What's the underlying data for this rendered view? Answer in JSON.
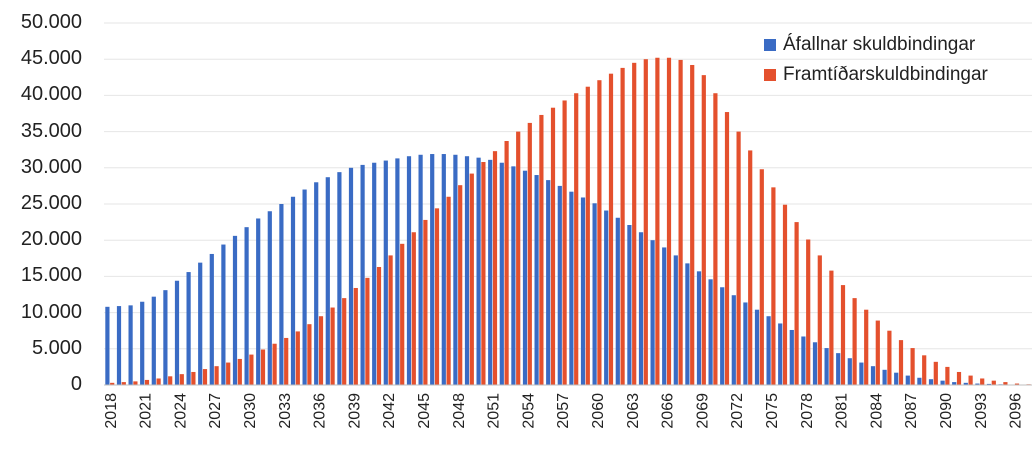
{
  "chart_data": {
    "type": "bar",
    "title": "",
    "xlabel": "",
    "ylabel": "",
    "ylim": [
      0,
      50000
    ],
    "y_ticks": [
      "50.000",
      "45.000",
      "40.000",
      "35.000",
      "30.000",
      "25.000",
      "20.000",
      "15.000",
      "10.000",
      "5.000",
      "0"
    ],
    "x_tick_labels": [
      "2018",
      "2021",
      "2024",
      "2027",
      "2030",
      "2033",
      "2036",
      "2039",
      "2042",
      "2045",
      "2048",
      "2051",
      "2054",
      "2057",
      "2060",
      "2063",
      "2066",
      "2069",
      "2072",
      "2075",
      "2078",
      "2081",
      "2084",
      "2087",
      "2090",
      "2093",
      "2096"
    ],
    "grid": true,
    "legend_position": "top-right",
    "categories": [
      2018,
      2019,
      2020,
      2021,
      2022,
      2023,
      2024,
      2025,
      2026,
      2027,
      2028,
      2029,
      2030,
      2031,
      2032,
      2033,
      2034,
      2035,
      2036,
      2037,
      2038,
      2039,
      2040,
      2041,
      2042,
      2043,
      2044,
      2045,
      2046,
      2047,
      2048,
      2049,
      2050,
      2051,
      2052,
      2053,
      2054,
      2055,
      2056,
      2057,
      2058,
      2059,
      2060,
      2061,
      2062,
      2063,
      2064,
      2065,
      2066,
      2067,
      2068,
      2069,
      2070,
      2071,
      2072,
      2073,
      2074,
      2075,
      2076,
      2077,
      2078,
      2079,
      2080,
      2081,
      2082,
      2083,
      2084,
      2085,
      2086,
      2087,
      2088,
      2089,
      2090,
      2091,
      2092,
      2093,
      2094,
      2095,
      2096,
      2097
    ],
    "series": [
      {
        "name": "Áfallnar skuldbindingar",
        "color": "#3a6bc4",
        "values": [
          10800,
          10900,
          11000,
          11500,
          12200,
          13100,
          14400,
          15600,
          16900,
          18100,
          19400,
          20600,
          21800,
          23000,
          24000,
          25000,
          26000,
          27000,
          28000,
          28700,
          29400,
          30000,
          30400,
          30700,
          31000,
          31300,
          31600,
          31800,
          31900,
          31900,
          31800,
          31600,
          31400,
          31100,
          30700,
          30200,
          29600,
          29000,
          28300,
          27500,
          26700,
          25900,
          25100,
          24100,
          23100,
          22100,
          21100,
          20000,
          19000,
          17900,
          16800,
          15700,
          14600,
          13500,
          12400,
          11400,
          10400,
          9500,
          8500,
          7600,
          6700,
          5900,
          5100,
          4400,
          3700,
          3100,
          2600,
          2100,
          1700,
          1300,
          1000,
          800,
          600,
          400,
          300,
          200,
          150,
          100,
          60,
          30
        ]
      },
      {
        "name": "Framtíðarskuldbindingar",
        "color": "#e4502d",
        "values": [
          300,
          400,
          500,
          700,
          900,
          1200,
          1500,
          1800,
          2200,
          2600,
          3100,
          3600,
          4200,
          4900,
          5700,
          6500,
          7400,
          8400,
          9500,
          10700,
          12000,
          13400,
          14800,
          16300,
          17900,
          19500,
          21100,
          22800,
          24400,
          26000,
          27600,
          29200,
          30800,
          32300,
          33700,
          35000,
          36200,
          37300,
          38300,
          39300,
          40300,
          41200,
          42100,
          43000,
          43800,
          44500,
          45000,
          45200,
          45200,
          44900,
          44200,
          42800,
          40300,
          37700,
          35000,
          32400,
          29800,
          27300,
          24900,
          22500,
          20100,
          17900,
          15800,
          13800,
          12000,
          10400,
          8900,
          7500,
          6200,
          5100,
          4100,
          3200,
          2500,
          1800,
          1300,
          900,
          600,
          400,
          200,
          100
        ]
      }
    ]
  }
}
